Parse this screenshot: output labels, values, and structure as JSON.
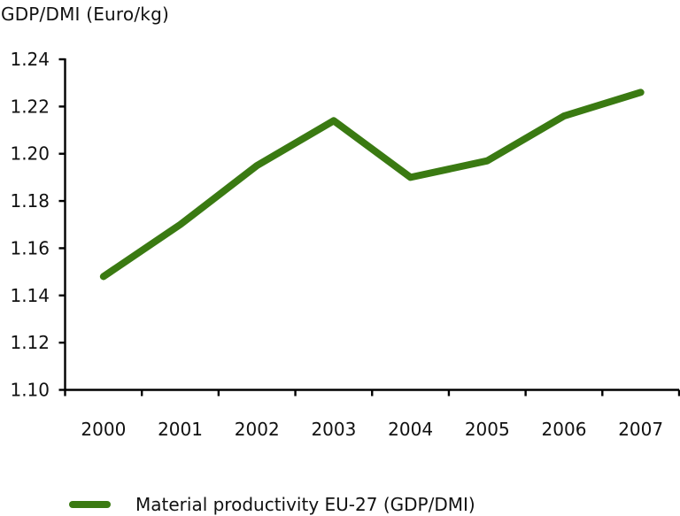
{
  "title": "GDP/DMI (Euro/kg)",
  "legend": {
    "label": "Material productivity EU-27 (GDP/DMI)"
  },
  "colors": {
    "line": "#3a7a12",
    "axis": "#000000",
    "text": "#111111",
    "background": "#ffffff"
  },
  "chart_data": {
    "type": "line",
    "title": "GDP/DMI (Euro/kg)",
    "xlabel": "",
    "ylabel": "GDP/DMI (Euro/kg)",
    "categories": [
      "2000",
      "2001",
      "2002",
      "2003",
      "2004",
      "2005",
      "2006",
      "2007"
    ],
    "series": [
      {
        "name": "Material productivity EU-27 (GDP/DMI)",
        "color": "#3a7a12",
        "values": [
          1.148,
          1.17,
          1.195,
          1.214,
          1.19,
          1.197,
          1.216,
          1.226
        ]
      }
    ],
    "ylim": [
      1.1,
      1.24
    ],
    "ytick_step": 0.02,
    "ytick_labels": [
      "1.10",
      "1.12",
      "1.14",
      "1.16",
      "1.18",
      "1.20",
      "1.22",
      "1.24"
    ],
    "grid": false,
    "legend_position": "bottom"
  }
}
